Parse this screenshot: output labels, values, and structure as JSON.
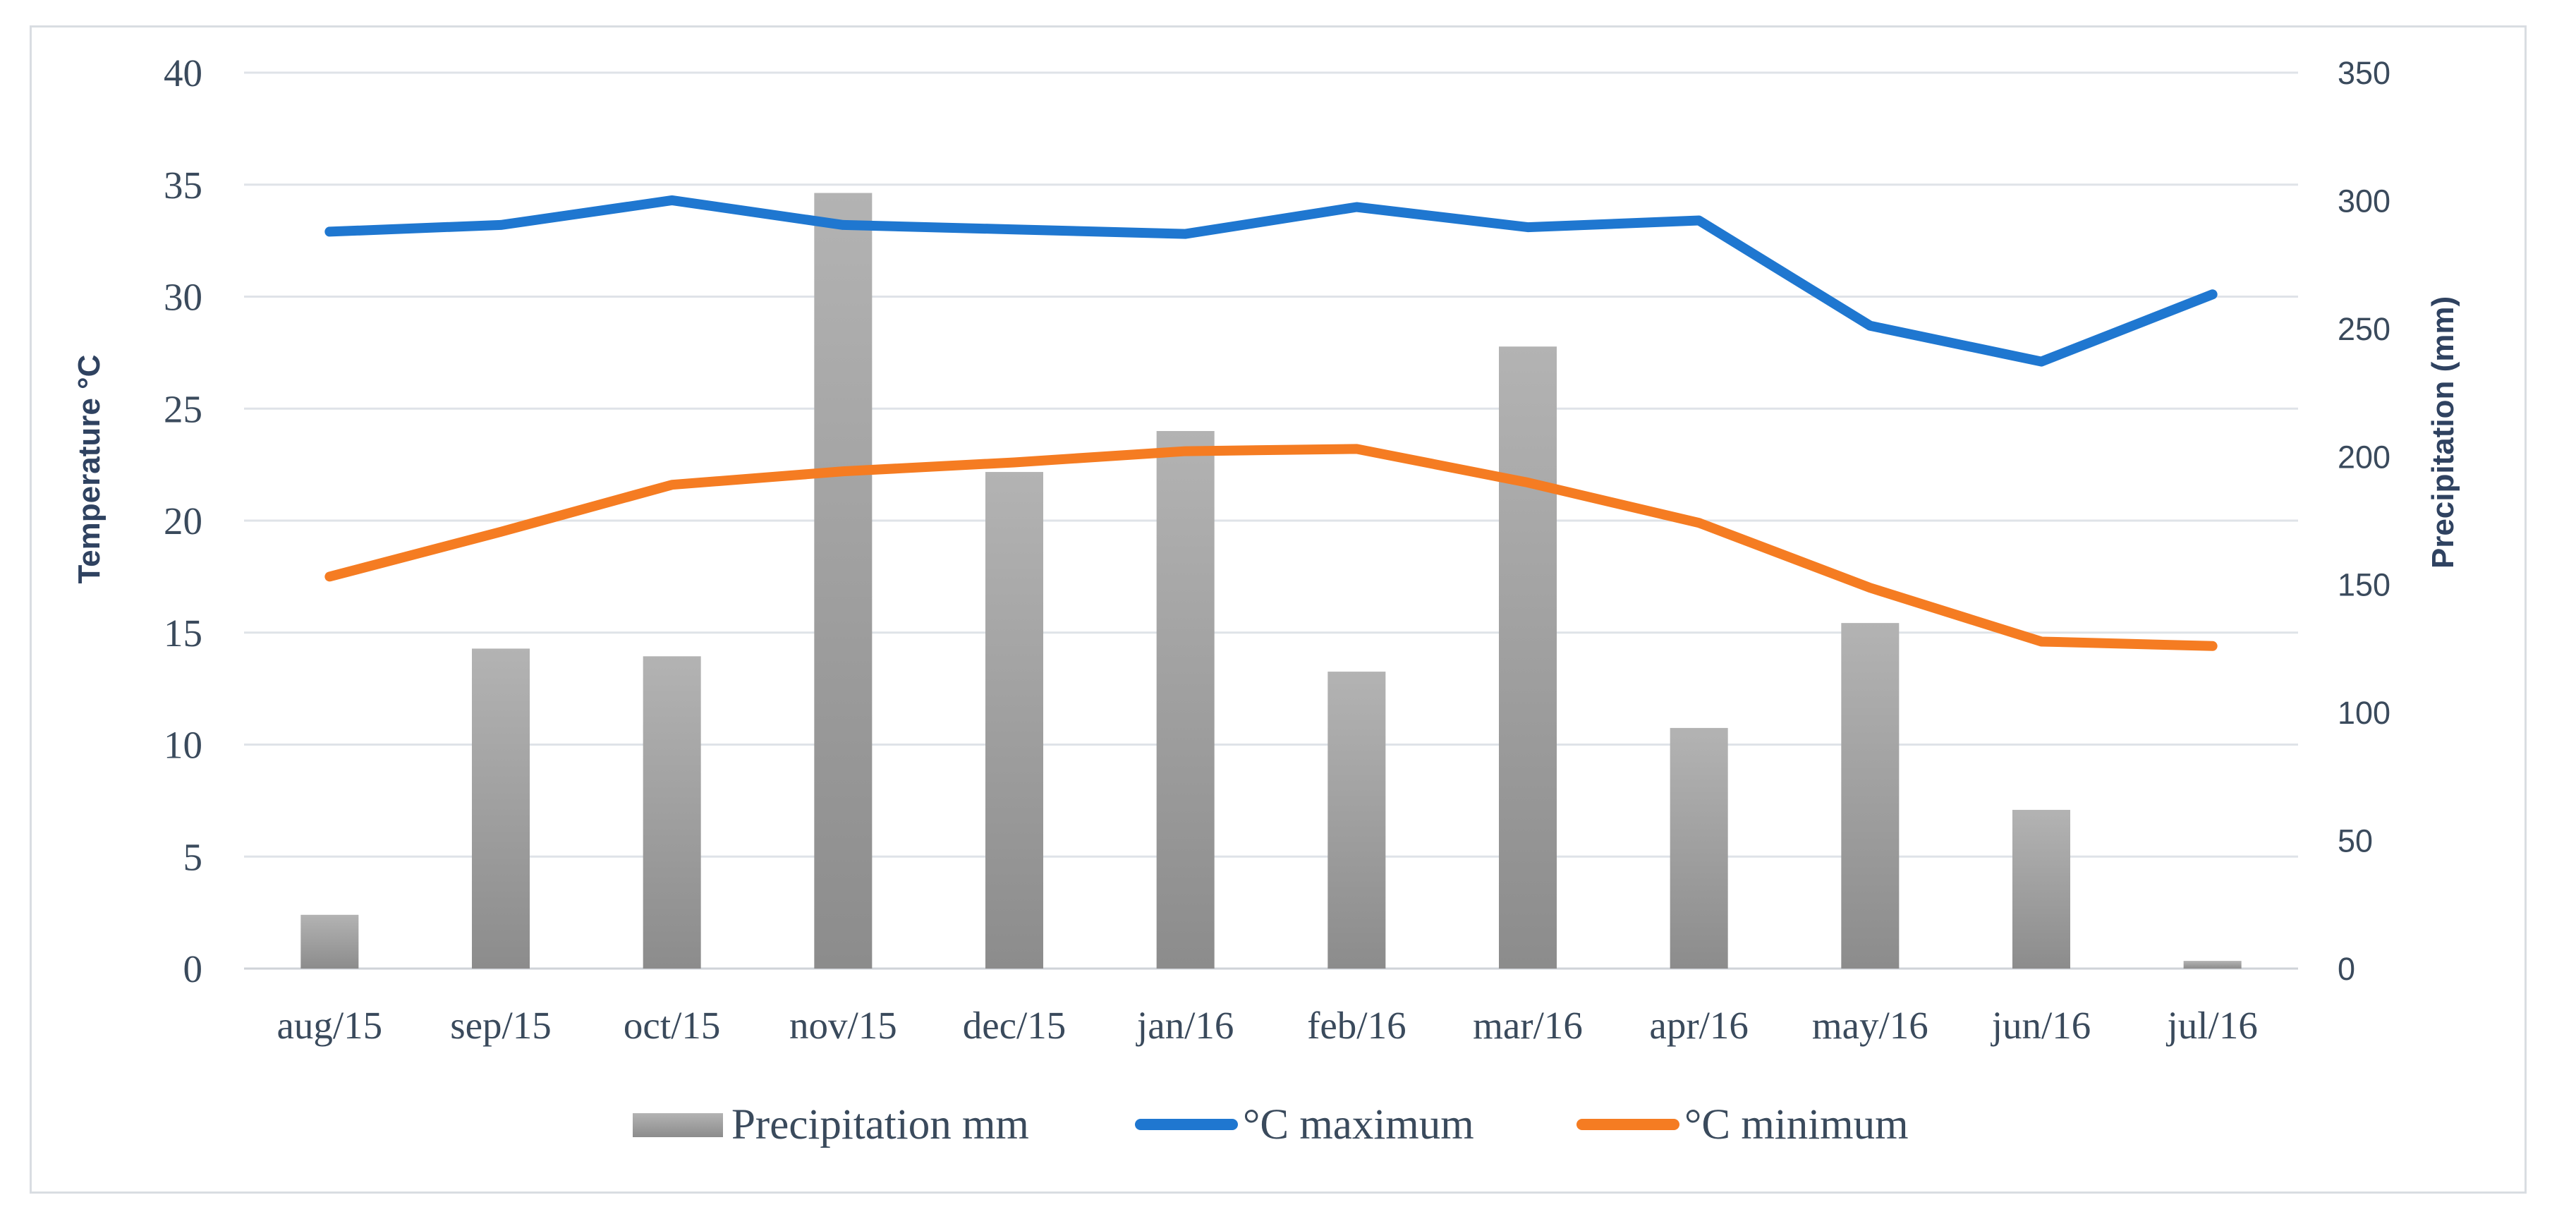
{
  "chart_data": {
    "type": "bar+line",
    "categories": [
      "aug/15",
      "sep/15",
      "oct/15",
      "nov/15",
      "dec/15",
      "jan/16",
      "feb/16",
      "mar/16",
      "apr/16",
      "may/16",
      "jun/16",
      "jul/16"
    ],
    "series": [
      {
        "name": "Precipitation mm",
        "type": "bar",
        "axis": "right",
        "color": "#a6a6a6",
        "values": [
          21,
          125,
          122,
          303,
          194,
          210,
          116,
          243,
          94,
          135,
          62,
          3
        ]
      },
      {
        "name": "°C maximum",
        "type": "line",
        "axis": "left",
        "color": "#1f77d0",
        "values": [
          32.9,
          33.2,
          34.3,
          33.2,
          33.0,
          32.8,
          34.0,
          33.1,
          33.4,
          28.7,
          27.1,
          30.1
        ]
      },
      {
        "name": "°C minimum",
        "type": "line",
        "axis": "left",
        "color": "#f57c22",
        "values": [
          17.5,
          19.5,
          21.6,
          22.2,
          22.6,
          23.1,
          23.2,
          21.7,
          19.9,
          17.0,
          14.6,
          14.4
        ]
      }
    ],
    "y_left": {
      "label": "Temperature  °C",
      "min": 0,
      "max": 40,
      "ticks": [
        0,
        5,
        10,
        15,
        20,
        25,
        30,
        35,
        40
      ]
    },
    "y_right": {
      "label": "Precipitation (mm)",
      "min": 0,
      "max": 350,
      "ticks": [
        0,
        50,
        100,
        150,
        200,
        250,
        300,
        350
      ]
    },
    "grid": true,
    "legend_position": "bottom"
  }
}
